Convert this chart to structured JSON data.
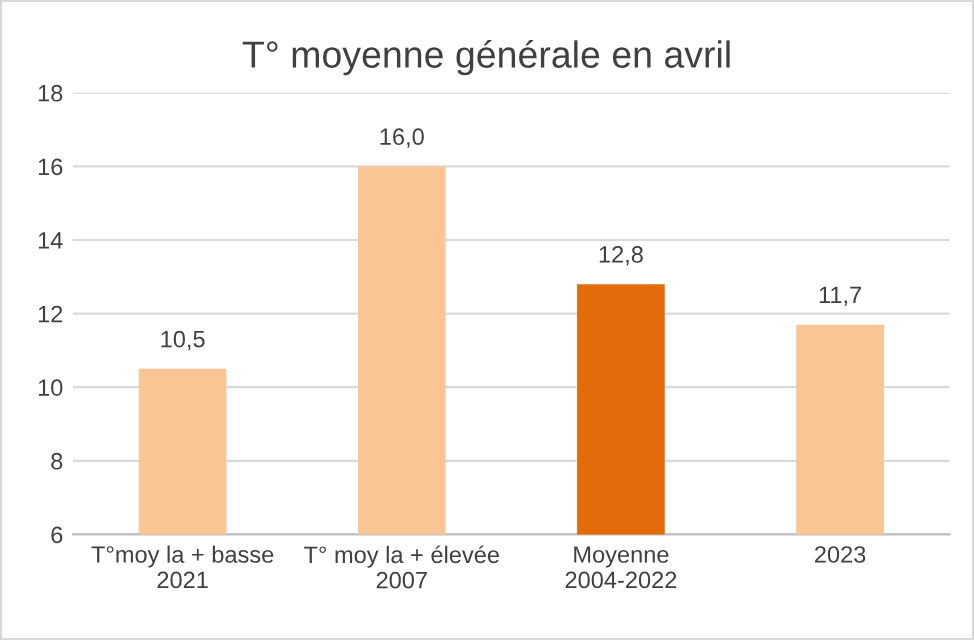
{
  "chart_data": {
    "type": "bar",
    "title": "T° moyenne générale en avril",
    "categories": [
      "T°moy la + basse\n2021",
      "T° moy la + élevée\n2007",
      "Moyenne\n2004-2022",
      "2023"
    ],
    "values": [
      10.5,
      16.0,
      12.8,
      11.7
    ],
    "colors": [
      "#f9c595",
      "#f9c595",
      "#e36c0a",
      "#f9c595"
    ],
    "value_labels": [
      "10,5",
      "16,0",
      "12,8",
      "11,7"
    ],
    "ylim": [
      6,
      18
    ],
    "yticks": [
      6,
      8,
      10,
      12,
      14,
      16,
      18
    ],
    "grid": "y"
  }
}
